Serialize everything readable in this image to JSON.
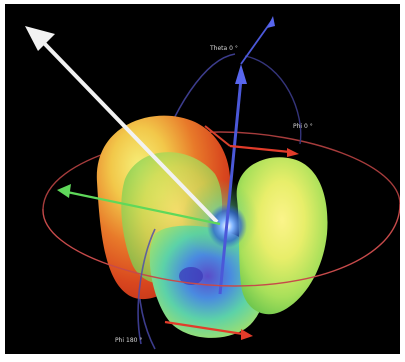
{
  "labels": {
    "top": "Theta 0 °",
    "right": "Phi 0 °",
    "bottom": "Phi 180 °"
  },
  "colors": {
    "background": "#000000",
    "ring": "#c64a4a",
    "blue_axis": "#4b58d8",
    "red_arrow": "#e23c2a",
    "white_arrow": "#f2f2f2",
    "green_arrow": "#5fd85a",
    "lobe_hot": "#e8301c",
    "lobe_warm": "#f4e84a",
    "lobe_cool": "#4fcf4f",
    "lobe_core": "#3a5ad6"
  }
}
